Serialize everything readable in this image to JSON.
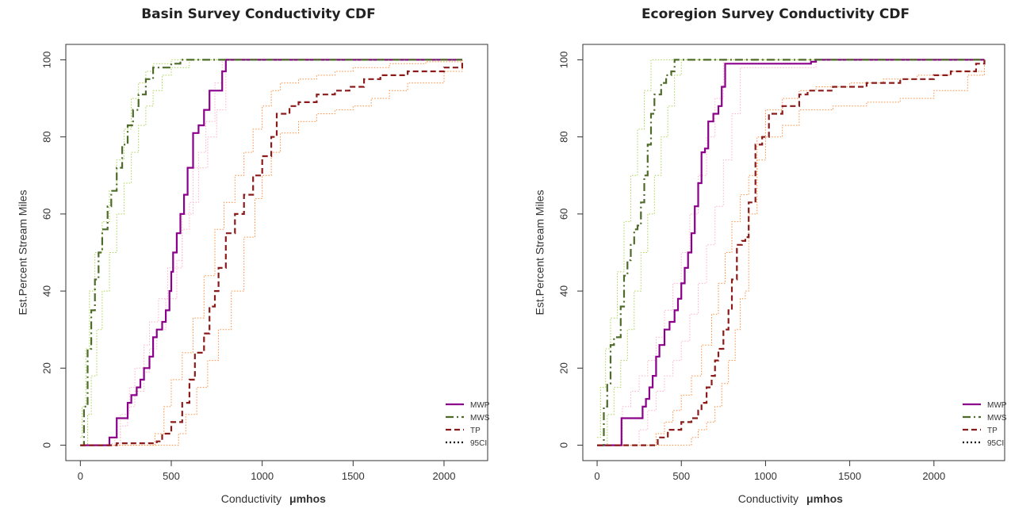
{
  "chart_data": [
    {
      "type": "line",
      "title": "Basin Survey Conductivity CDF",
      "xlabel": "Conductivity",
      "xunit": "μmhos",
      "ylabel": "Est.Percent Stream Miles",
      "xlim": [
        -80,
        2240
      ],
      "ylim": [
        -4,
        104
      ],
      "xticks": [
        0,
        500,
        1000,
        1500,
        2000
      ],
      "yticks": [
        0,
        20,
        40,
        60,
        80,
        100
      ],
      "legend": [
        "MWP",
        "MWS",
        "TP",
        "95CI"
      ],
      "legend_position": "bottom-right",
      "series": [
        {
          "name": "MWP",
          "color": "#8b008b",
          "dash": "solid",
          "x": [
            0,
            150,
            160,
            200,
            260,
            280,
            310,
            330,
            350,
            380,
            400,
            420,
            450,
            470,
            490,
            500,
            510,
            530,
            550,
            570,
            590,
            620,
            650,
            680,
            710,
            740,
            780,
            800,
            2100
          ],
          "y": [
            0,
            0,
            2,
            7,
            11,
            13,
            15,
            17,
            20,
            23,
            28,
            30,
            32,
            35,
            40,
            45,
            50,
            55,
            60,
            65,
            72,
            81,
            83,
            87,
            92,
            92,
            97,
            100,
            100
          ]
        },
        {
          "name": "MWS",
          "color": "#4e6b2a",
          "dash": "dashdot",
          "x": [
            0,
            20,
            40,
            60,
            80,
            100,
            120,
            150,
            170,
            200,
            230,
            260,
            290,
            320,
            360,
            400,
            450,
            500,
            550,
            2100
          ],
          "y": [
            0,
            10,
            25,
            35,
            43,
            50,
            56,
            62,
            66,
            72,
            78,
            83,
            87,
            91,
            95,
            98,
            98,
            99,
            100,
            100
          ]
        },
        {
          "name": "TP",
          "color": "#8b1a1a",
          "dash": "dashed",
          "x": [
            0,
            200,
            420,
            450,
            500,
            560,
            600,
            630,
            680,
            710,
            740,
            760,
            800,
            850,
            900,
            950,
            1000,
            1050,
            1080,
            1150,
            1200,
            1300,
            1400,
            1480,
            1560,
            1650,
            1800,
            2000,
            2100
          ],
          "y": [
            0,
            0.5,
            1,
            3,
            6,
            11,
            17,
            24,
            29,
            36,
            40,
            46,
            55,
            60,
            65,
            70,
            75,
            80,
            86,
            88,
            89,
            91,
            92,
            93,
            95,
            96,
            97,
            98,
            100
          ]
        }
      ],
      "ci_lines": [
        {
          "color": "#ffb0c4",
          "x": [
            0,
            120,
            220,
            260,
            300,
            350,
            380,
            420,
            470,
            530,
            560,
            620,
            700,
            750,
            800,
            2100
          ],
          "y": [
            0,
            0,
            5,
            10,
            14,
            19,
            25,
            30,
            38,
            48,
            60,
            72,
            80,
            87,
            100,
            100
          ]
        },
        {
          "color": "#ffb0c4",
          "x": [
            0,
            150,
            190,
            220,
            270,
            300,
            350,
            380,
            430,
            480,
            560,
            600,
            650,
            690,
            740,
            780,
            2100
          ],
          "y": [
            0,
            0.5,
            2,
            8,
            15,
            20,
            26,
            32,
            38,
            46,
            56,
            63,
            76,
            84,
            94,
            100,
            100
          ]
        },
        {
          "color": "#a8d450",
          "x": [
            0,
            10,
            30,
            50,
            80,
            120,
            160,
            200,
            240,
            280,
            320,
            360,
            400,
            500,
            2100
          ],
          "y": [
            2,
            10,
            25,
            40,
            50,
            58,
            66,
            74,
            82,
            90,
            94,
            97,
            99,
            100,
            100
          ]
        },
        {
          "color": "#a8d450",
          "x": [
            0,
            40,
            60,
            90,
            120,
            160,
            200,
            240,
            280,
            320,
            360,
            400,
            450,
            500,
            600,
            2100
          ],
          "y": [
            0,
            8,
            18,
            30,
            40,
            50,
            60,
            68,
            76,
            83,
            88,
            92,
            96,
            98,
            100,
            100
          ]
        },
        {
          "color": "#ff8c3a",
          "x": [
            0,
            300,
            410,
            460,
            500,
            560,
            620,
            680,
            740,
            790,
            850,
            900,
            950,
            1000,
            1050,
            1100,
            1200,
            1300,
            1400,
            1500,
            1700,
            1900,
            2100
          ],
          "y": [
            0,
            0,
            3,
            10,
            17,
            24,
            33,
            44,
            56,
            63,
            70,
            76,
            82,
            88,
            92,
            94,
            95,
            96,
            97,
            98,
            99,
            99.5,
            100
          ]
        },
        {
          "color": "#ff8c3a",
          "x": [
            0,
            500,
            540,
            580,
            640,
            700,
            760,
            830,
            900,
            960,
            1000,
            1050,
            1100,
            1200,
            1300,
            1400,
            1500,
            1600,
            1700,
            1800,
            2000,
            2100
          ],
          "y": [
            0,
            0,
            3,
            8,
            15,
            22,
            30,
            40,
            54,
            64,
            70,
            76,
            81,
            84,
            86,
            87,
            88,
            90,
            92,
            94,
            97,
            100
          ]
        }
      ]
    },
    {
      "type": "line",
      "title": "Ecoregion Survey Conductivity CDF",
      "xlabel": "Conductivity",
      "xunit": "μmhos",
      "ylabel": "Est.Percent Stream Miles",
      "xlim": [
        -85,
        2420
      ],
      "ylim": [
        -4,
        104
      ],
      "xticks": [
        0,
        500,
        1000,
        1500,
        2000
      ],
      "yticks": [
        0,
        20,
        40,
        60,
        80,
        100
      ],
      "legend": [
        "MWP",
        "MWS",
        "TP",
        "95CI"
      ],
      "legend_position": "bottom-right",
      "series": [
        {
          "name": "MWP",
          "color": "#8b008b",
          "dash": "solid",
          "x": [
            0,
            140,
            145,
            240,
            270,
            290,
            310,
            330,
            350,
            370,
            400,
            430,
            460,
            480,
            500,
            520,
            540,
            560,
            580,
            600,
            620,
            640,
            660,
            690,
            720,
            740,
            760,
            1200,
            1270,
            1300,
            2300
          ],
          "y": [
            0,
            0,
            7,
            7,
            10,
            12,
            15,
            18,
            23,
            26,
            30,
            32,
            35,
            38,
            42,
            46,
            50,
            55,
            62,
            68,
            76,
            77,
            84,
            86,
            88,
            93,
            99,
            99,
            99.5,
            100,
            100
          ]
        },
        {
          "name": "MWS",
          "color": "#4e6b2a",
          "dash": "dashdot",
          "x": [
            0,
            40,
            60,
            80,
            100,
            140,
            160,
            180,
            200,
            220,
            240,
            260,
            280,
            300,
            320,
            340,
            380,
            410,
            440,
            460,
            2300
          ],
          "y": [
            0,
            10,
            16,
            26,
            28,
            36,
            44,
            48,
            52,
            56,
            57,
            63,
            70,
            78,
            86,
            91,
            94,
            96,
            97,
            100,
            100
          ]
        },
        {
          "name": "TP",
          "color": "#8b1a1a",
          "dash": "dashed",
          "x": [
            0,
            320,
            360,
            420,
            500,
            560,
            600,
            620,
            650,
            680,
            700,
            720,
            750,
            780,
            800,
            830,
            860,
            880,
            900,
            940,
            980,
            1020,
            1100,
            1200,
            1250,
            1400,
            1600,
            1800,
            2000,
            2100,
            2250,
            2300
          ],
          "y": [
            0,
            0,
            2,
            4,
            6,
            7,
            9,
            11,
            15,
            18,
            22,
            25,
            30,
            35,
            43,
            52,
            53,
            54,
            63,
            78,
            80,
            86,
            88,
            91,
            92,
            93,
            94,
            95,
            96,
            97,
            99,
            100
          ]
        }
      ],
      "ci_lines": [
        {
          "color": "#ffb0c4",
          "x": [
            0,
            80,
            150,
            200,
            250,
            300,
            350,
            400,
            450,
            500,
            550,
            600,
            650,
            700,
            750,
            2300
          ],
          "y": [
            0,
            0,
            10,
            14,
            18,
            22,
            28,
            35,
            42,
            50,
            60,
            70,
            80,
            90,
            100,
            100
          ]
        },
        {
          "color": "#ffb0c4",
          "x": [
            0,
            200,
            250,
            300,
            350,
            400,
            450,
            500,
            550,
            600,
            650,
            700,
            750,
            800,
            850,
            1300,
            2300
          ],
          "y": [
            0,
            0,
            4,
            9,
            14,
            18,
            22,
            27,
            34,
            42,
            52,
            62,
            74,
            86,
            98,
            100,
            100
          ]
        },
        {
          "color": "#a8d450",
          "x": [
            0,
            20,
            50,
            80,
            120,
            160,
            200,
            240,
            280,
            320,
            400,
            2300
          ],
          "y": [
            2,
            15,
            25,
            33,
            45,
            58,
            70,
            82,
            92,
            100,
            100,
            100
          ]
        },
        {
          "color": "#a8d450",
          "x": [
            0,
            60,
            100,
            140,
            180,
            220,
            260,
            300,
            340,
            380,
            420,
            460,
            500,
            2300
          ],
          "y": [
            0,
            8,
            15,
            22,
            30,
            40,
            50,
            60,
            70,
            80,
            88,
            96,
            100,
            100
          ]
        },
        {
          "color": "#ff8c3a",
          "x": [
            0,
            300,
            350,
            400,
            450,
            500,
            560,
            620,
            680,
            720,
            760,
            800,
            850,
            900,
            950,
            1000,
            1100,
            1200,
            1300,
            1500,
            1700,
            1900,
            2100,
            2300
          ],
          "y": [
            0,
            0,
            3,
            6,
            9,
            13,
            18,
            26,
            34,
            42,
            50,
            58,
            65,
            70,
            80,
            87,
            90,
            92,
            93,
            94,
            95,
            96,
            97,
            100
          ]
        },
        {
          "color": "#ff8c3a",
          "x": [
            0,
            500,
            560,
            600,
            650,
            700,
            740,
            780,
            820,
            850,
            880,
            900,
            950,
            1000,
            1100,
            1200,
            1400,
            1600,
            1800,
            2000,
            2200,
            2300
          ],
          "y": [
            0,
            0,
            2,
            4,
            6,
            10,
            16,
            22,
            30,
            38,
            40,
            60,
            74,
            80,
            83,
            87,
            88,
            89,
            90,
            92,
            96,
            100
          ]
        }
      ]
    }
  ]
}
